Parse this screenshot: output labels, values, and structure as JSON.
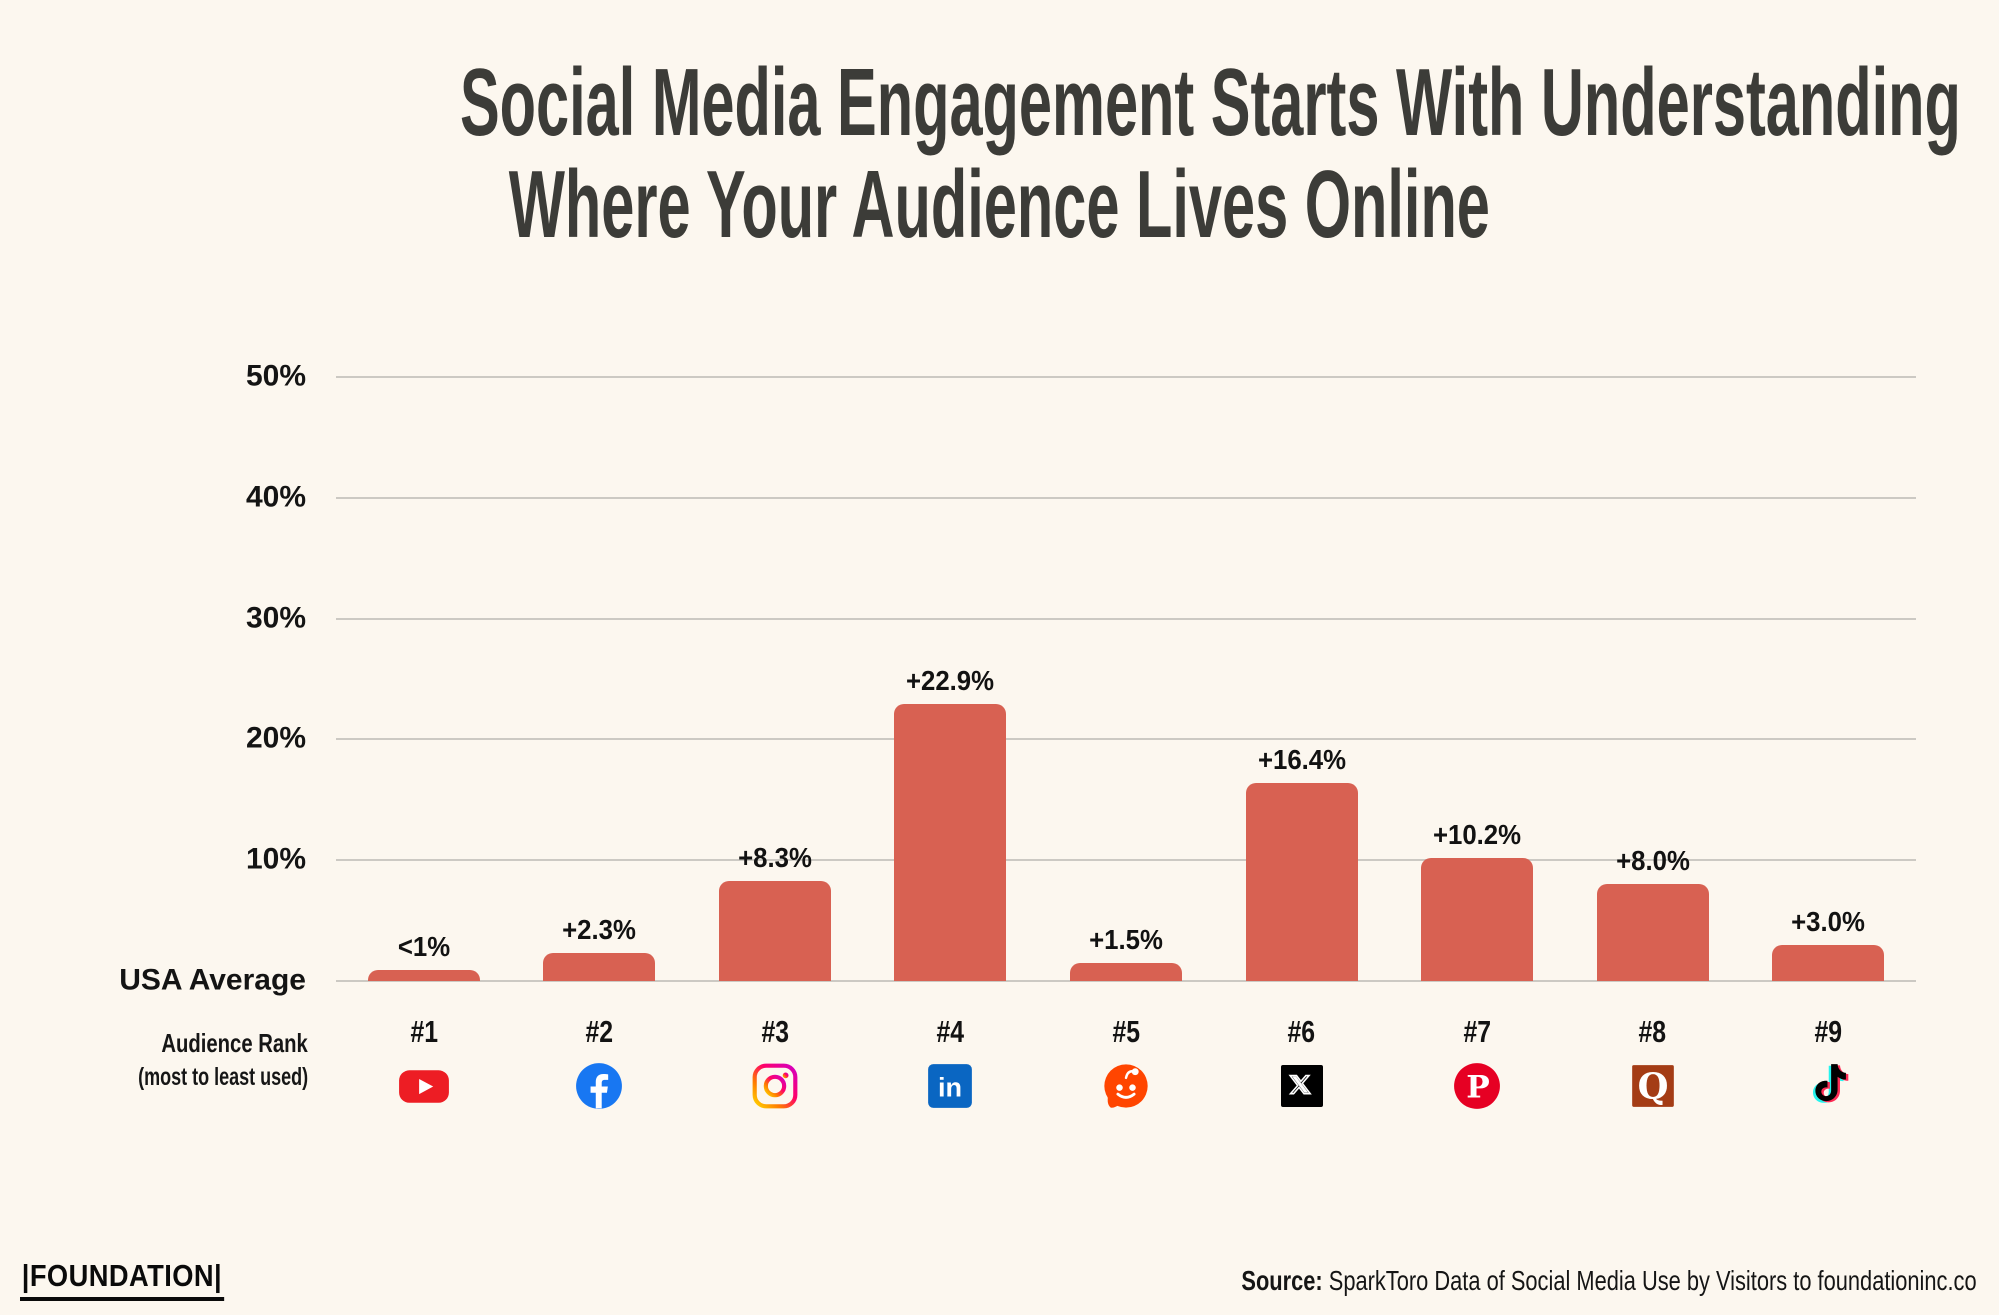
{
  "page": {
    "background": "#FCF7EF"
  },
  "title": {
    "line1": "Social Media Engagement Starts With Understanding",
    "line2": "Where Your Audience Lives Online",
    "color": "#3C3C38"
  },
  "chart_data": {
    "type": "bar",
    "title": "Social Media Engagement Starts With Understanding Where Your Audience Lives Online",
    "ylim": [
      0,
      50
    ],
    "grid": true,
    "bar_color": "#D86152",
    "gridline_color": "#CCC9C3",
    "y_ticks": [
      {
        "label": "50%",
        "value": 50
      },
      {
        "label": "40%",
        "value": 40
      },
      {
        "label": "30%",
        "value": 30
      },
      {
        "label": "20%",
        "value": 20
      },
      {
        "label": "10%",
        "value": 10
      }
    ],
    "baseline": {
      "label": "USA Average",
      "value": 0
    },
    "x_axis": {
      "title": "Audience Rank",
      "subtitle": "(most to least used)"
    },
    "items": [
      {
        "rank": "#1",
        "platform": "YouTube",
        "icon": "youtube-icon",
        "value": 0.9,
        "label": "<1%",
        "colors": {
          "bg": "#ED1D24"
        }
      },
      {
        "rank": "#2",
        "platform": "Facebook",
        "icon": "facebook-icon",
        "value": 2.3,
        "label": "+2.3%",
        "colors": {
          "bg": "#1877F2"
        }
      },
      {
        "rank": "#3",
        "platform": "Instagram",
        "icon": "instagram-icon",
        "value": 8.3,
        "label": "+8.3%",
        "colors": {
          "stops": [
            "#FFD600",
            "#FF7A00",
            "#FF0169",
            "#D300C5"
          ]
        }
      },
      {
        "rank": "#4",
        "platform": "LinkedIn",
        "icon": "linkedin-icon",
        "value": 22.9,
        "label": "+22.9%",
        "colors": {
          "bg": "#0A66C2"
        }
      },
      {
        "rank": "#5",
        "platform": "Reddit",
        "icon": "reddit-icon",
        "value": 1.5,
        "label": "+1.5%",
        "colors": {
          "bg": "#FF4500"
        }
      },
      {
        "rank": "#6",
        "platform": "X",
        "icon": "x-icon",
        "value": 16.4,
        "label": "+16.4%",
        "colors": {
          "bg": "#000000"
        }
      },
      {
        "rank": "#7",
        "platform": "Pinterest",
        "icon": "pinterest-icon",
        "value": 10.2,
        "label": "+10.2%",
        "colors": {
          "bg": "#E60023"
        }
      },
      {
        "rank": "#8",
        "platform": "Quora",
        "icon": "quora-icon",
        "value": 8.0,
        "label": "+8.0%",
        "colors": {
          "bg": "#A43C15"
        }
      },
      {
        "rank": "#9",
        "platform": "TikTok",
        "icon": "tiktok-icon",
        "value": 3.0,
        "label": "+3.0%",
        "colors": {
          "cyan": "#25F4EE",
          "pink": "#FE2C55",
          "black": "#010101"
        }
      }
    ]
  },
  "footer": {
    "logo_text": "|FOUNDATION|",
    "source_label": "Source:",
    "source_text": " SparkToro Data of Social Media Use by Visitors to foundationinc.co"
  }
}
